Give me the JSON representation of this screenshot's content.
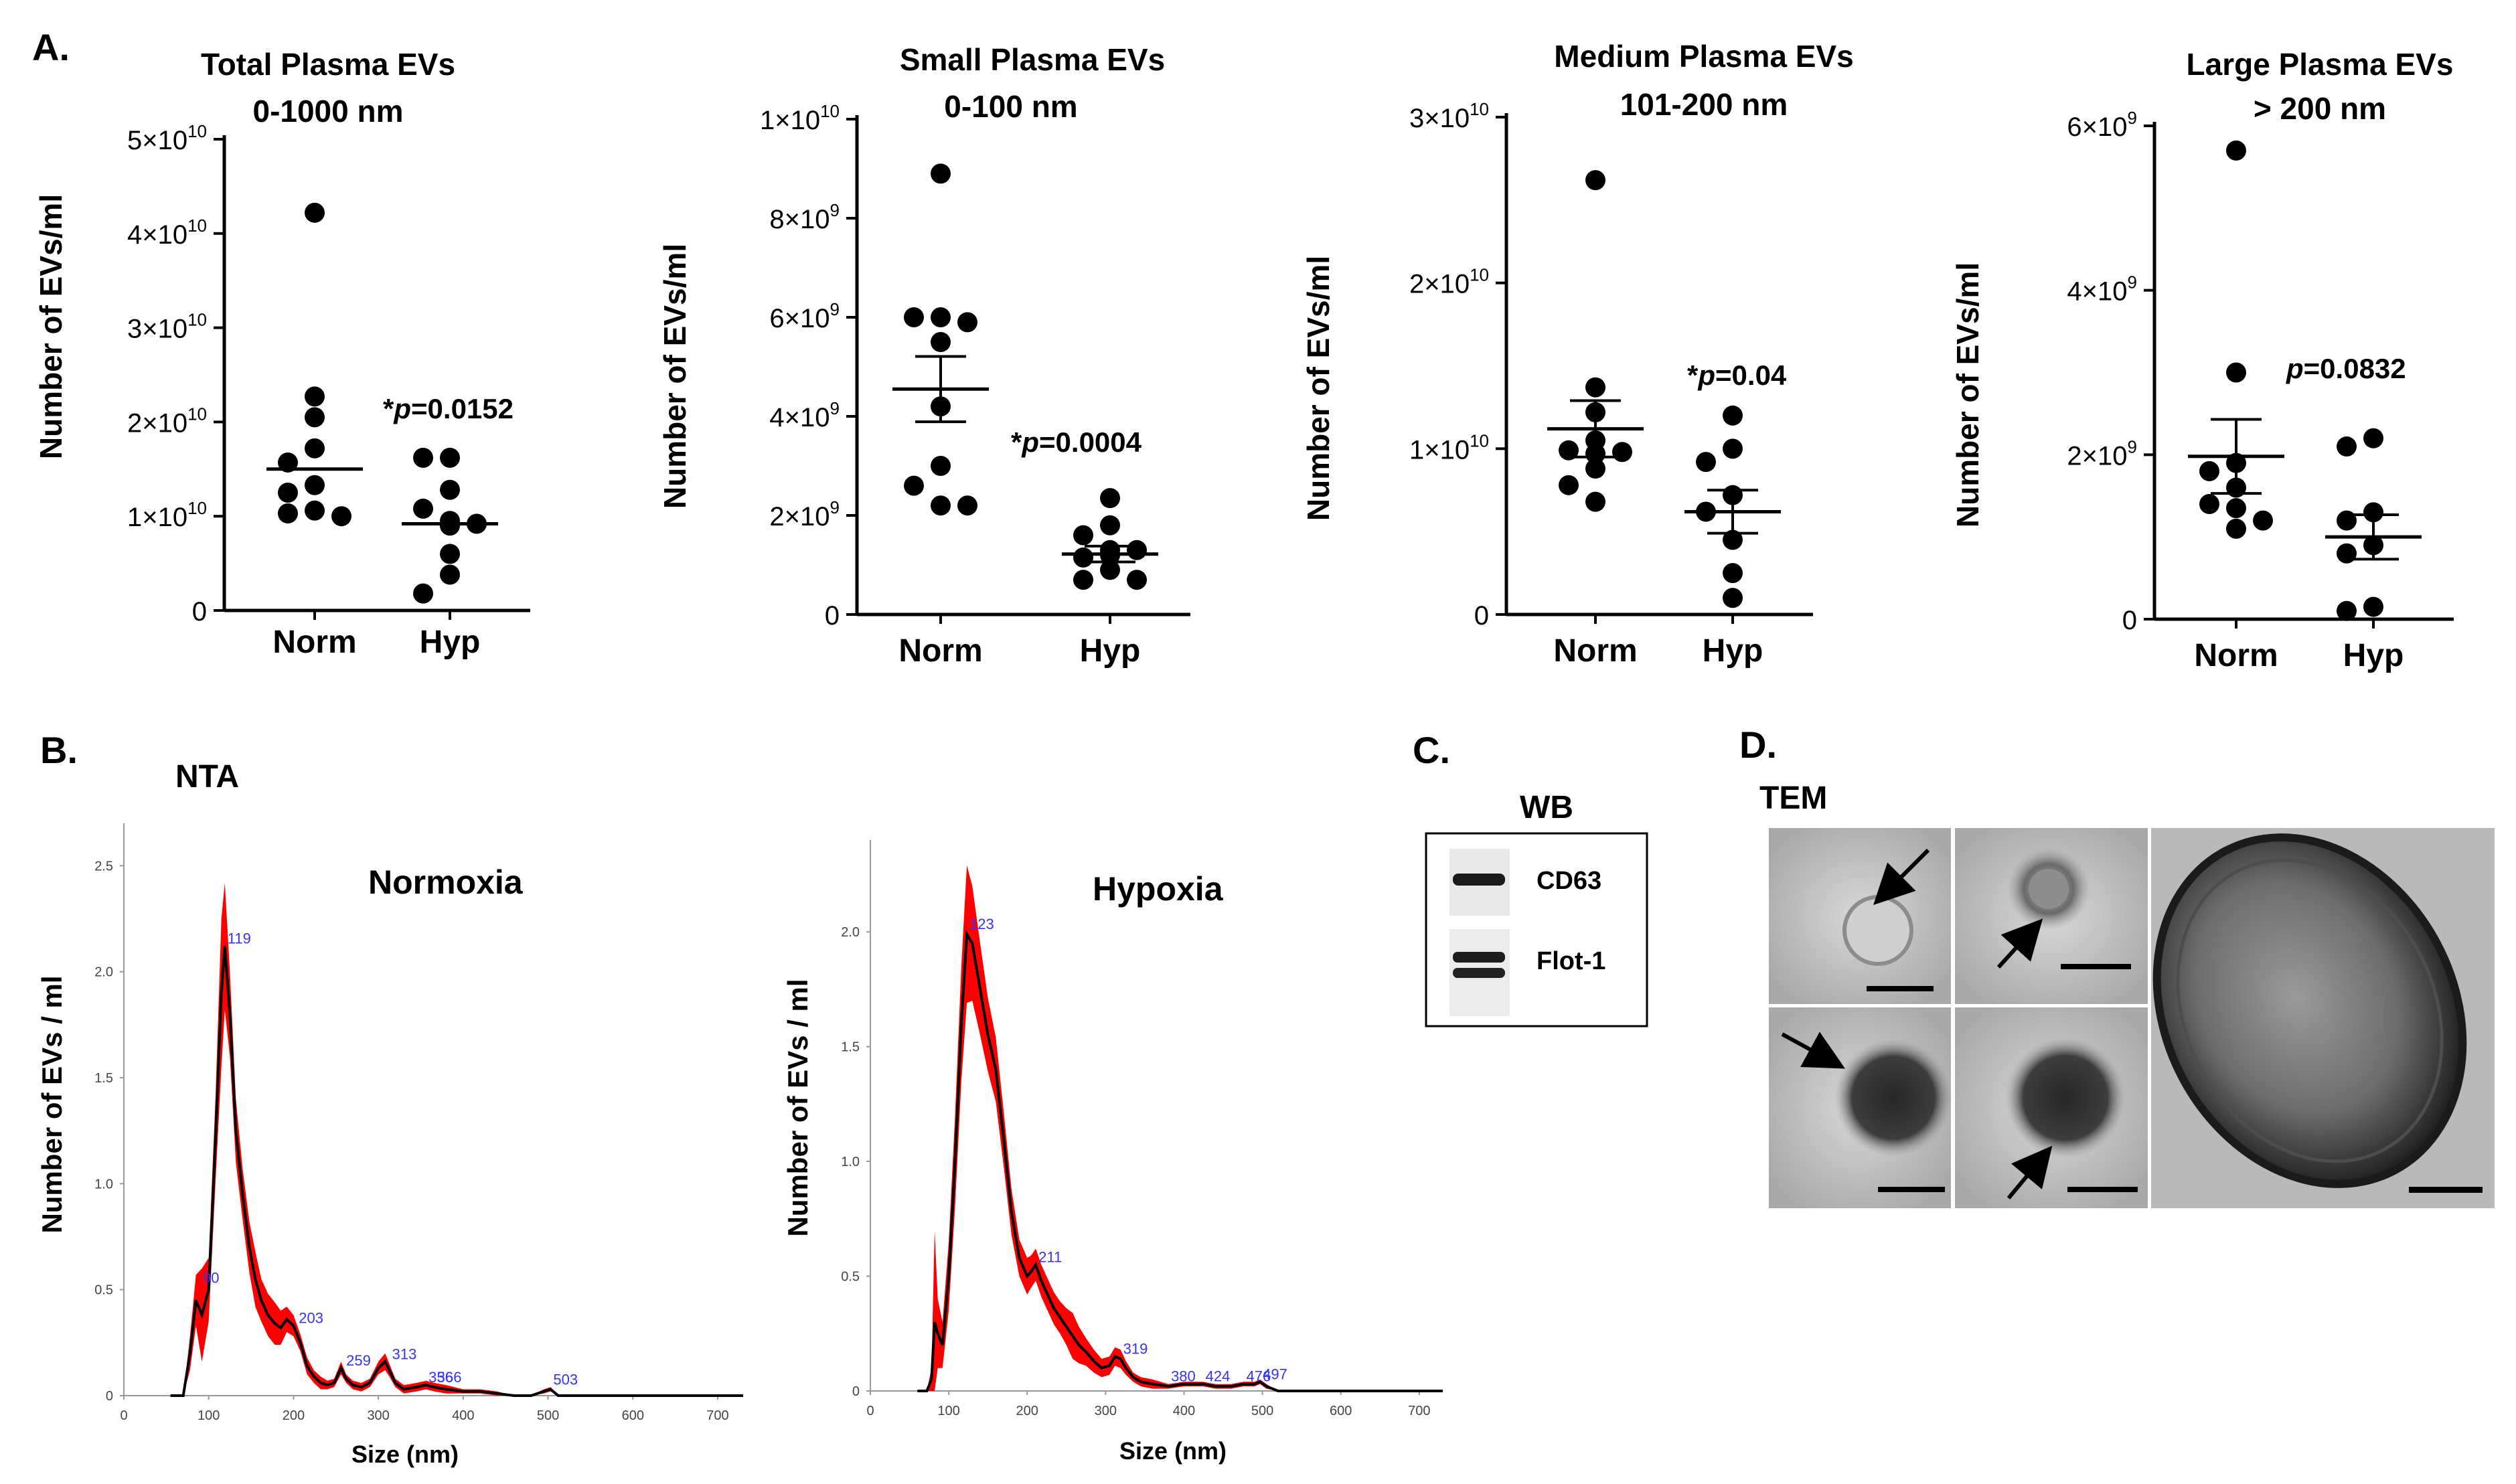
{
  "panel_labels": {
    "a": "A.",
    "b": "B.",
    "c": "C.",
    "d": "D."
  },
  "panel_b": {
    "heading": "NTA",
    "x_axis_label": "Size (nm)",
    "y_axis_label": "Number of EVs / ml"
  },
  "panel_c": {
    "heading": "WB",
    "bands": [
      "CD63",
      "Flot-1"
    ]
  },
  "panel_d": {
    "heading": "TEM"
  },
  "colors": {
    "mean_line": "#000000",
    "error_band": "#ff0000",
    "peak_label": "#3333ff"
  },
  "chart_data": [
    {
      "type": "scatter",
      "title": "Total Plasma EVs",
      "subtitle": "0-1000 nm",
      "ylabel": "Number of EVs/ml",
      "categories": [
        "Norm",
        "Hyp"
      ],
      "ylim": [
        0,
        50000000000.0
      ],
      "yticks": [
        0,
        10000000000.0,
        20000000000.0,
        30000000000.0,
        40000000000.0,
        50000000000.0
      ],
      "ytick_labels": [
        [
          "0",
          ""
        ],
        [
          "1×10",
          "10"
        ],
        [
          "2×10",
          "10"
        ],
        [
          "3×10",
          "10"
        ],
        [
          "4×10",
          "10"
        ],
        [
          "5×10",
          "10"
        ]
      ],
      "points": [
        [
          42200000000.0,
          22700000000.0,
          20500000000.0,
          17200000000.0,
          15700000000.0,
          13300000000.0,
          12500000000.0,
          10600000000.0,
          10300000000.0,
          10000000000.0
        ],
        [
          16200000000.0,
          16200000000.0,
          12800000000.0,
          10800000000.0,
          9500000000.0,
          9200000000.0,
          9000000000.0,
          6000000000.0,
          3800000000.0,
          1800000000.0
        ]
      ],
      "mean": [
        15000000000.0,
        9200000000.0
      ],
      "sem": [
        null,
        null
      ],
      "annotation": {
        "star": "*",
        "p_italic": "p",
        "text": "=0.0152"
      }
    },
    {
      "type": "scatter",
      "title": "Small Plasma EVs",
      "subtitle": "0-100 nm",
      "ylabel": "Number of EVs/ml",
      "categories": [
        "Norm",
        "Hyp"
      ],
      "ylim": [
        0,
        10000000000.0
      ],
      "yticks": [
        0,
        2000000000.0,
        4000000000.0,
        6000000000.0,
        8000000000.0,
        10000000000.0
      ],
      "ytick_labels": [
        [
          "0",
          ""
        ],
        [
          "2×10",
          "9"
        ],
        [
          "4×10",
          "9"
        ],
        [
          "6×10",
          "9"
        ],
        [
          "8×10",
          "9"
        ],
        [
          "1×10",
          "10"
        ]
      ],
      "points": [
        [
          8900000000.0,
          6000000000.0,
          6000000000.0,
          5500000000.0,
          5900000000.0,
          4200000000.0,
          3000000000.0,
          2600000000.0,
          2200000000.0,
          2200000000.0
        ],
        [
          2350000000.0,
          1800000000.0,
          1600000000.0,
          1300000000.0,
          1300000000.0,
          1200000000.0,
          1150000000.0,
          900000000.0,
          700000000.0,
          700000000.0
        ]
      ],
      "mean": [
        4550000000.0,
        1220000000.0
      ],
      "sem": [
        660000000.0,
        160000000.0
      ],
      "annotation": {
        "star": "*",
        "p_italic": "p",
        "text": "=0.0004"
      }
    },
    {
      "type": "scatter",
      "title": "Medium Plasma EVs",
      "subtitle": "101-200 nm",
      "ylabel": "Number of EVs/ml",
      "categories": [
        "Norm",
        "Hyp"
      ],
      "ylim": [
        0,
        30000000000.0
      ],
      "yticks": [
        0,
        10000000000.0,
        20000000000.0,
        30000000000.0
      ],
      "ytick_labels": [
        [
          "0",
          ""
        ],
        [
          "1×10",
          "10"
        ],
        [
          "2×10",
          "10"
        ],
        [
          "3×10",
          "10"
        ]
      ],
      "points": [
        [
          26200000000.0,
          13700000000.0,
          12200000000.0,
          10500000000.0,
          9900000000.0,
          9800000000.0,
          9700000000.0,
          8800000000.0,
          7800000000.0,
          6800000000.0
        ],
        [
          12000000000.0,
          10000000000.0,
          9200000000.0,
          7200000000.0,
          6200000000.0,
          4500000000.0,
          2500000000.0,
          1000000000.0
        ]
      ],
      "mean": [
        11200000000.0,
        6200000000.0
      ],
      "sem": [
        1700000000.0,
        1300000000.0
      ],
      "annotation": {
        "star": "*",
        "p_italic": "p",
        "text": "=0.04"
      }
    },
    {
      "type": "scatter",
      "title": "Large Plasma EVs",
      "subtitle": "> 200 nm",
      "ylabel": "Number of EVs/ml",
      "categories": [
        "Norm",
        "Hyp"
      ],
      "ylim": [
        0,
        6000000000.0
      ],
      "yticks": [
        0,
        2000000000.0,
        4000000000.0,
        6000000000.0
      ],
      "ytick_labels": [
        [
          "0",
          ""
        ],
        [
          "2×10",
          "9"
        ],
        [
          "4×10",
          "9"
        ],
        [
          "6×10",
          "9"
        ]
      ],
      "points": [
        [
          5700000000.0,
          3000000000.0,
          1900000000.0,
          1800000000.0,
          1600000000.0,
          1400000000.0,
          1350000000.0,
          1200000000.0,
          1100000000.0
        ],
        [
          2200000000.0,
          2100000000.0,
          1300000000.0,
          1200000000.0,
          900000000.0,
          800000000.0,
          150000000.0,
          100000000.0
        ]
      ],
      "mean": [
        1980000000.0,
        1000000000.0
      ],
      "sem": [
        450000000.0,
        270000000.0
      ],
      "annotation": {
        "star": "",
        "p_italic": "p",
        "text": "=0.0832"
      }
    },
    {
      "type": "line",
      "title": "Normoxia",
      "xlabel": "Size (nm)",
      "ylabel": "Number of EVs / ml",
      "xlim": [
        0,
        730
      ],
      "ylim": [
        0,
        2.7
      ],
      "xticks": [
        0,
        100,
        200,
        300,
        400,
        500,
        600,
        700
      ],
      "yticks": [
        0,
        0.5,
        1.0,
        1.5,
        2.0,
        2.5
      ],
      "ytick_labels": [
        "0",
        "0.5",
        "1.0",
        "1.5",
        "2.0",
        "2.5"
      ],
      "x": [
        55,
        70,
        78,
        85,
        92,
        100,
        108,
        115,
        119,
        125,
        132,
        140,
        148,
        155,
        162,
        170,
        178,
        185,
        192,
        200,
        208,
        216,
        224,
        232,
        240,
        248,
        256,
        262,
        270,
        280,
        290,
        300,
        308,
        313,
        320,
        330,
        345,
        356,
        366,
        380,
        400,
        420,
        440,
        460,
        480,
        495,
        503,
        512,
        530,
        560,
        600,
        650,
        700,
        730
      ],
      "mean": [
        0,
        0,
        0.2,
        0.45,
        0.38,
        0.5,
        1.2,
        1.9,
        2.12,
        1.8,
        1.25,
        0.95,
        0.7,
        0.55,
        0.45,
        0.38,
        0.34,
        0.32,
        0.36,
        0.33,
        0.25,
        0.14,
        0.09,
        0.06,
        0.05,
        0.06,
        0.13,
        0.08,
        0.05,
        0.04,
        0.06,
        0.13,
        0.16,
        0.12,
        0.06,
        0.03,
        0.04,
        0.05,
        0.04,
        0.03,
        0.02,
        0.02,
        0.01,
        0.0,
        0.0,
        0.02,
        0.03,
        0.0,
        0.0,
        0.0,
        0.0,
        0.0,
        0.0,
        0.0
      ],
      "band": [
        0,
        0,
        0.08,
        0.12,
        0.22,
        0.15,
        0.2,
        0.35,
        0.3,
        0.2,
        0.15,
        0.12,
        0.12,
        0.13,
        0.1,
        0.1,
        0.1,
        0.08,
        0.06,
        0.05,
        0.04,
        0.04,
        0.03,
        0.03,
        0.02,
        0.02,
        0.03,
        0.02,
        0.02,
        0.02,
        0.02,
        0.03,
        0.04,
        0.03,
        0.02,
        0.02,
        0.02,
        0.02,
        0.02,
        0.02,
        0.01,
        0.01,
        0.01,
        0.0,
        0.0,
        0.01,
        0.01,
        0.0,
        0.0,
        0.0,
        0.0,
        0.0,
        0.0,
        0.0
      ],
      "peak_labels": [
        {
          "x": 90,
          "y": 0.52,
          "text": "90"
        },
        {
          "x": 119,
          "y": 2.12,
          "text": "119"
        },
        {
          "x": 203,
          "y": 0.33,
          "text": "203"
        },
        {
          "x": 259,
          "y": 0.13,
          "text": "259"
        },
        {
          "x": 313,
          "y": 0.16,
          "text": "313"
        },
        {
          "x": 356,
          "y": 0.05,
          "text": "356"
        },
        {
          "x": 366,
          "y": 0.05,
          "text": "366"
        },
        {
          "x": 503,
          "y": 0.04,
          "text": "503"
        }
      ]
    },
    {
      "type": "line",
      "title": "Hypoxia",
      "xlabel": "Size (nm)",
      "ylabel": "Number of EVs / ml",
      "xlim": [
        0,
        730
      ],
      "ylim": [
        0,
        2.4
      ],
      "xticks": [
        0,
        100,
        200,
        300,
        400,
        500,
        600,
        700
      ],
      "yticks": [
        0,
        0.5,
        1.0,
        1.5,
        2.0
      ],
      "ytick_labels": [
        "0",
        "0.5",
        "1.0",
        "1.5",
        "2.0"
      ],
      "x": [
        60,
        72,
        78,
        82,
        86,
        92,
        100,
        108,
        116,
        123,
        130,
        140,
        150,
        160,
        170,
        180,
        190,
        200,
        205,
        211,
        218,
        226,
        234,
        242,
        250,
        258,
        266,
        275,
        285,
        295,
        305,
        312,
        319,
        326,
        335,
        345,
        360,
        380,
        400,
        424,
        440,
        460,
        476,
        490,
        497,
        505,
        520,
        560,
        600,
        650,
        700,
        730
      ],
      "mean": [
        0,
        0,
        0.05,
        0.3,
        0.25,
        0.2,
        0.5,
        1.0,
        1.6,
        1.99,
        1.95,
        1.75,
        1.55,
        1.4,
        1.1,
        0.78,
        0.58,
        0.5,
        0.52,
        0.55,
        0.48,
        0.42,
        0.36,
        0.32,
        0.28,
        0.24,
        0.2,
        0.17,
        0.13,
        0.1,
        0.11,
        0.15,
        0.14,
        0.1,
        0.06,
        0.04,
        0.03,
        0.02,
        0.03,
        0.03,
        0.02,
        0.02,
        0.03,
        0.03,
        0.04,
        0.02,
        0.0,
        0.0,
        0.0,
        0.0,
        0.0,
        0.0
      ],
      "band": [
        0,
        0,
        0.05,
        0.4,
        0.15,
        0.1,
        0.15,
        0.2,
        0.25,
        0.3,
        0.25,
        0.2,
        0.16,
        0.14,
        0.12,
        0.1,
        0.08,
        0.08,
        0.07,
        0.07,
        0.07,
        0.07,
        0.07,
        0.07,
        0.08,
        0.1,
        0.08,
        0.06,
        0.05,
        0.04,
        0.04,
        0.04,
        0.04,
        0.03,
        0.02,
        0.02,
        0.02,
        0.01,
        0.01,
        0.01,
        0.01,
        0.01,
        0.01,
        0.01,
        0.01,
        0.01,
        0.0,
        0.0,
        0.0,
        0.0,
        0.0,
        0.0
      ],
      "peak_labels": [
        {
          "x": 123,
          "y": 2.0,
          "text": "123"
        },
        {
          "x": 211,
          "y": 0.55,
          "text": "211"
        },
        {
          "x": 319,
          "y": 0.15,
          "text": "319"
        },
        {
          "x": 380,
          "y": 0.03,
          "text": "380"
        },
        {
          "x": 424,
          "y": 0.03,
          "text": "424"
        },
        {
          "x": 476,
          "y": 0.03,
          "text": "476"
        },
        {
          "x": 497,
          "y": 0.04,
          "text": "497"
        }
      ]
    }
  ]
}
